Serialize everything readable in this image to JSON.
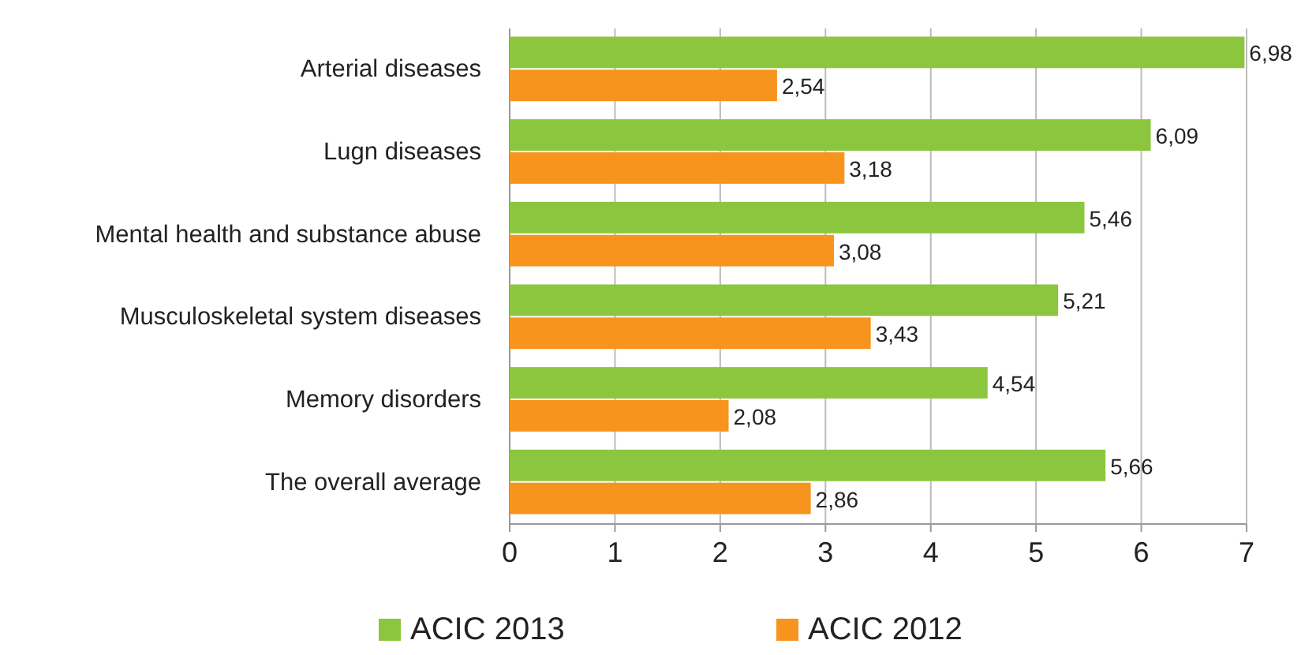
{
  "chart_data": {
    "type": "bar",
    "orientation": "horizontal",
    "categories": [
      "Arterial diseases",
      "Lugn diseases",
      "Mental health and substance abuse",
      "Musculoskeletal system diseases",
      "Memory disorders",
      "The overall average"
    ],
    "series": [
      {
        "name": "ACIC 2013",
        "color": "#8cc63f",
        "values": [
          6.98,
          6.09,
          5.46,
          5.21,
          4.54,
          5.66
        ],
        "value_labels": [
          "6,98",
          "6,09",
          "5,46",
          "5,21",
          "4,54",
          "5,66"
        ]
      },
      {
        "name": "ACIC 2012",
        "color": "#f7941d",
        "values": [
          2.54,
          3.18,
          3.08,
          3.43,
          2.08,
          2.86
        ],
        "value_labels": [
          "2,54",
          "3,18",
          "3,08",
          "3,43",
          "2,08",
          "2,86"
        ]
      }
    ],
    "xlim": [
      0,
      7
    ],
    "xticks": [
      0,
      1,
      2,
      3,
      4,
      5,
      6,
      7
    ],
    "grid": "x",
    "legend": "bottom"
  }
}
